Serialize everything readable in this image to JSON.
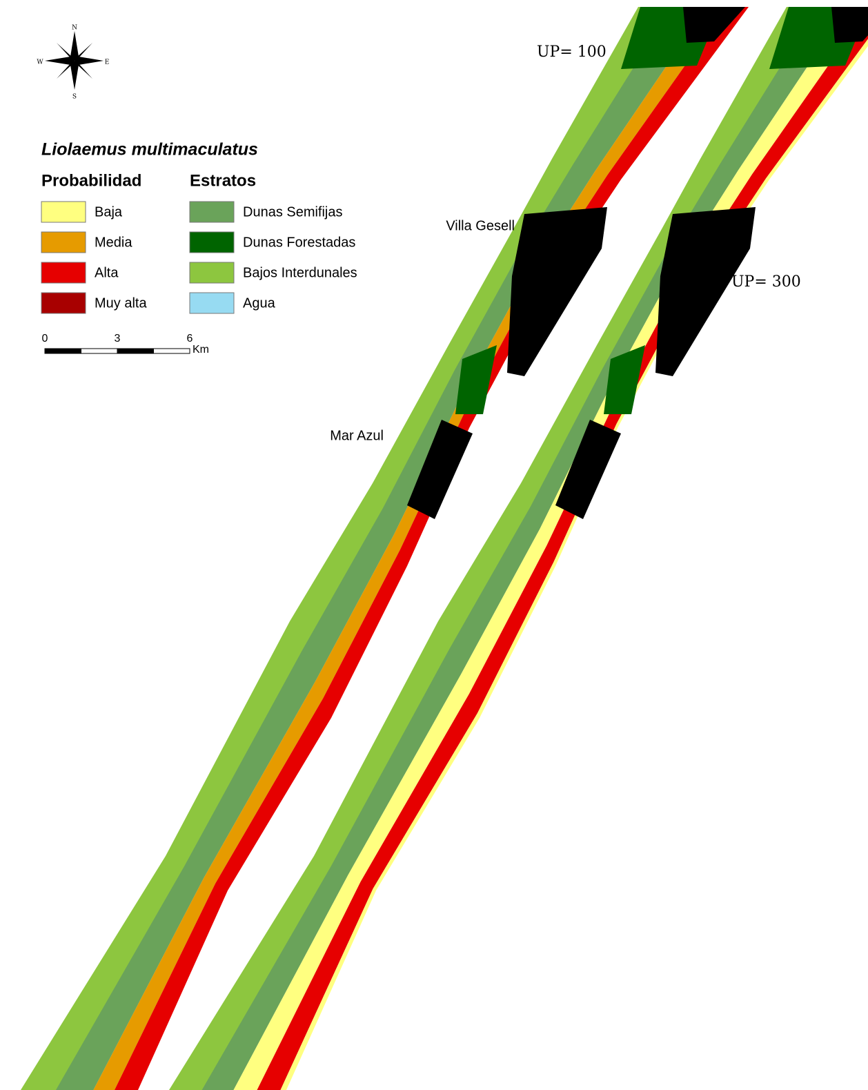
{
  "compass": {
    "n": "N",
    "s": "S",
    "e": "E",
    "w": "W"
  },
  "legend": {
    "title": "Liolaemus multimaculatus",
    "groups": [
      {
        "title": "Probabilidad",
        "items": [
          {
            "label": "Baja",
            "color": "#ffff80"
          },
          {
            "label": "Media",
            "color": "#e69b00"
          },
          {
            "label": "Alta",
            "color": "#e60000"
          },
          {
            "label": "Muy alta",
            "color": "#a80000"
          }
        ]
      },
      {
        "title": "Estratos",
        "items": [
          {
            "label": "Dunas Semifijas",
            "color": "#6aa35a"
          },
          {
            "label": "Dunas Forestadas",
            "color": "#006400"
          },
          {
            "label": "Bajos Interdunales",
            "color": "#8dc63f"
          },
          {
            "label": "Agua",
            "color": "#97dbf2"
          }
        ]
      }
    ]
  },
  "scale_bar": {
    "ticks": [
      0,
      3,
      6
    ],
    "unit": "Km"
  },
  "labels": {
    "up_100": "UP= 100",
    "up_300": "UP= 300",
    "villa_gesell": "Villa Gesell",
    "mar_azul": "Mar Azul"
  }
}
